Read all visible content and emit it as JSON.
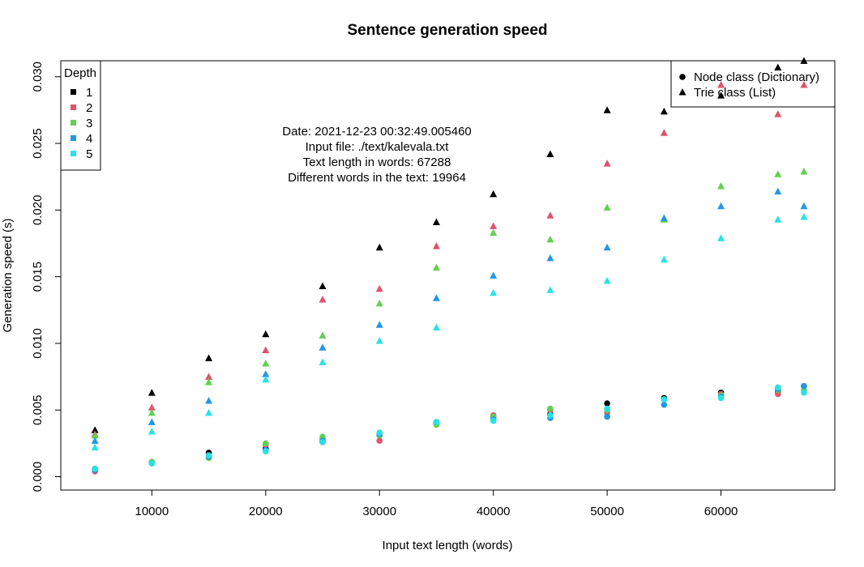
{
  "chart_data": {
    "type": "scatter",
    "title": "Sentence generation speed",
    "xlabel": "Input text length (words)",
    "ylabel": "Generation speed (s)",
    "xlim": [
      2000,
      70000
    ],
    "ylim": [
      -0.001,
      0.0312
    ],
    "x_ticks": [
      10000,
      20000,
      30000,
      40000,
      50000,
      60000
    ],
    "y_ticks": [
      0.0,
      0.005,
      0.01,
      0.015,
      0.02,
      0.025,
      0.03
    ],
    "y_tick_labels": [
      "0.000",
      "0.005",
      "0.010",
      "0.015",
      "0.020",
      "0.025",
      "0.030"
    ],
    "x": [
      5000,
      10000,
      15000,
      20000,
      25000,
      30000,
      35000,
      40000,
      45000,
      50000,
      55000,
      60000,
      65000,
      67288
    ],
    "annotations": [
      "Date: 2021-12-23 00:32:49.005460",
      "Input file: ./text/kalevala.txt",
      "Text length in words: 67288",
      "Different words in the text: 19964"
    ],
    "depth_legend": {
      "title": "Depth",
      "placement": "top-left",
      "entries": [
        {
          "label": "1",
          "color": "#000000"
        },
        {
          "label": "2",
          "color": "#DF536B"
        },
        {
          "label": "3",
          "color": "#61D04F"
        },
        {
          "label": "4",
          "color": "#2297E6"
        },
        {
          "label": "5",
          "color": "#28E2E5"
        }
      ]
    },
    "class_legend": {
      "placement": "top-right",
      "entries": [
        {
          "label": "Node class (Dictionary)",
          "marker": "circle"
        },
        {
          "label": "Trie class (List)",
          "marker": "triangle"
        }
      ]
    },
    "series": [
      {
        "class": "node",
        "depth": 1,
        "marker": "circle",
        "color": "#000000",
        "values": [
          0.0006,
          0.0011,
          0.0018,
          0.0021,
          0.0026,
          0.0031,
          0.004,
          0.0045,
          0.0047,
          0.0055,
          0.0059,
          0.0063,
          0.0064,
          0.0068
        ]
      },
      {
        "class": "node",
        "depth": 2,
        "marker": "circle",
        "color": "#DF536B",
        "values": [
          0.0004,
          0.0011,
          0.0015,
          0.0024,
          0.0028,
          0.0027,
          0.004,
          0.0046,
          0.005,
          0.0048,
          0.0058,
          0.0062,
          0.0062,
          0.0068
        ]
      },
      {
        "class": "node",
        "depth": 3,
        "marker": "circle",
        "color": "#61D04F",
        "values": [
          0.0006,
          0.0011,
          0.0014,
          0.0025,
          0.003,
          0.0031,
          0.0039,
          0.0045,
          0.0051,
          0.005,
          0.0058,
          0.0061,
          0.0065,
          0.0065
        ]
      },
      {
        "class": "node",
        "depth": 4,
        "marker": "circle",
        "color": "#2297E6",
        "values": [
          0.0005,
          0.001,
          0.0015,
          0.002,
          0.0027,
          0.0032,
          0.0041,
          0.0043,
          0.0044,
          0.0045,
          0.0054,
          0.006,
          0.0066,
          0.0068
        ]
      },
      {
        "class": "node",
        "depth": 5,
        "marker": "circle",
        "color": "#28E2E5",
        "values": [
          0.0006,
          0.001,
          0.0016,
          0.0019,
          0.0026,
          0.0033,
          0.0041,
          0.0042,
          0.0046,
          0.0051,
          0.0058,
          0.0059,
          0.0067,
          0.0063
        ]
      },
      {
        "class": "trie",
        "depth": 1,
        "marker": "triangle",
        "color": "#000000",
        "values": [
          0.0035,
          0.0063,
          0.0089,
          0.0107,
          0.0143,
          0.0172,
          0.0191,
          0.0212,
          0.0242,
          0.0275,
          0.0274,
          0.0286,
          0.0307,
          0.0312
        ]
      },
      {
        "class": "trie",
        "depth": 2,
        "marker": "triangle",
        "color": "#DF536B",
        "values": [
          0.0032,
          0.0052,
          0.0075,
          0.0095,
          0.0133,
          0.0141,
          0.0173,
          0.0188,
          0.0196,
          0.0235,
          0.0258,
          0.0294,
          0.0272,
          0.0294
        ]
      },
      {
        "class": "trie",
        "depth": 3,
        "marker": "triangle",
        "color": "#61D04F",
        "values": [
          0.0031,
          0.0048,
          0.0071,
          0.0085,
          0.0106,
          0.013,
          0.0157,
          0.0183,
          0.0178,
          0.0202,
          0.0193,
          0.0218,
          0.0227,
          0.0229
        ]
      },
      {
        "class": "trie",
        "depth": 4,
        "marker": "triangle",
        "color": "#2297E6",
        "values": [
          0.0027,
          0.0041,
          0.0057,
          0.0077,
          0.0097,
          0.0114,
          0.0134,
          0.0151,
          0.0164,
          0.0172,
          0.0194,
          0.0203,
          0.0214,
          0.0203
        ]
      },
      {
        "class": "trie",
        "depth": 5,
        "marker": "triangle",
        "color": "#28E2E5",
        "values": [
          0.0022,
          0.0034,
          0.0048,
          0.0073,
          0.0086,
          0.0102,
          0.0112,
          0.0138,
          0.014,
          0.0147,
          0.0163,
          0.0179,
          0.0193,
          0.0195
        ]
      }
    ]
  }
}
